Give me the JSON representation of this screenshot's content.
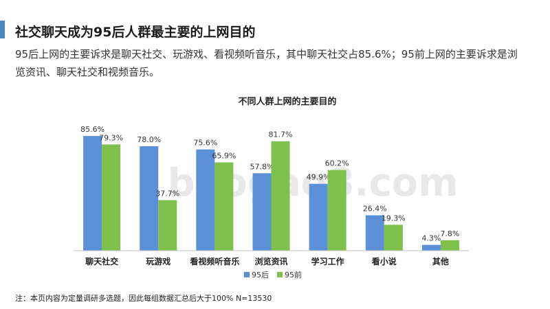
{
  "slide": {
    "title": "社交聊天成为95后人群最主要的上网目的",
    "subtitle": "95后上网的主要诉求是聊天社交、玩游戏、看视频听音乐，其中聊天社交占85.6%；95前上网的主要诉求是浏览资讯、聊天社交和视频音乐。",
    "footnote": "注：本页内容为定量调研多选题，因此每组数据汇总后大于100% N=13530",
    "watermark": "baogao8.com"
  },
  "chart_data": {
    "type": "bar",
    "title": "不同人群上网的主要目的",
    "categories": [
      "聊天社交",
      "玩游戏",
      "看视频听音乐",
      "浏览资讯",
      "学习工作",
      "看小说",
      "其他"
    ],
    "series": [
      {
        "name": "95后",
        "color": "#5B8FD8",
        "values": [
          85.6,
          78.0,
          75.6,
          57.8,
          49.9,
          26.4,
          4.3
        ]
      },
      {
        "name": "95前",
        "color": "#7DC04B",
        "values": [
          79.3,
          37.7,
          65.9,
          81.7,
          60.2,
          19.3,
          7.8
        ]
      }
    ],
    "value_suffix": "%",
    "ylim": [
      0,
      100
    ],
    "grid": false,
    "legend_position": "bottom-center"
  }
}
